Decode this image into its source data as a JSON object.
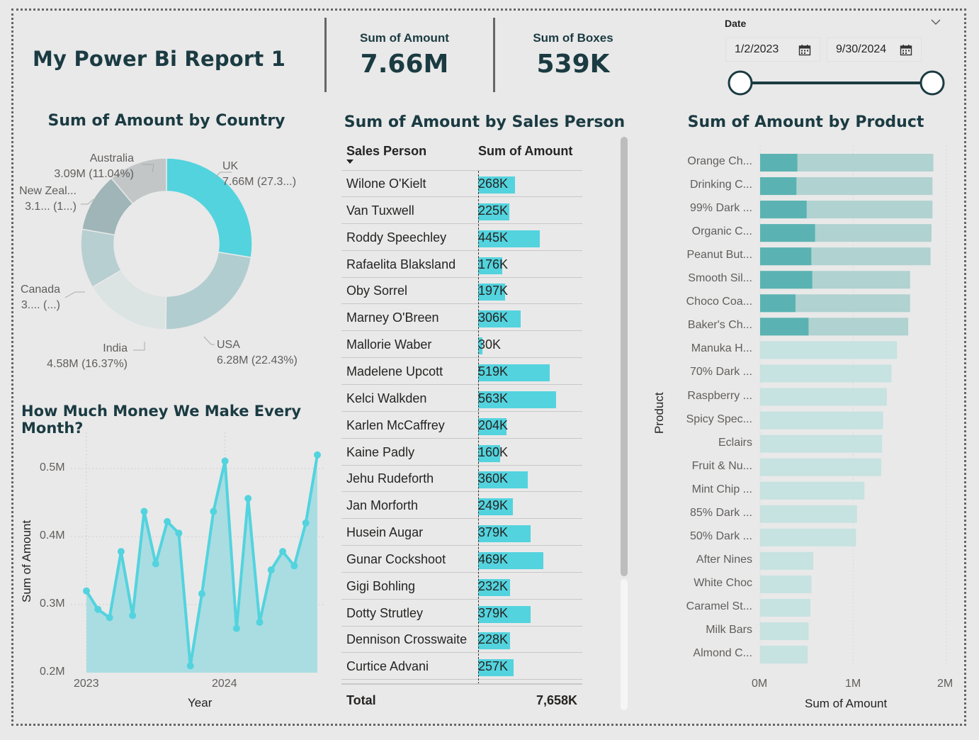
{
  "report_title": "My Power Bi Report 1",
  "cards": [
    {
      "label": "Sum of Amount",
      "value": "7.66M"
    },
    {
      "label": "Sum of Boxes",
      "value": "539K"
    }
  ],
  "date_slicer": {
    "label": "Date",
    "start": "1/2/2023",
    "end": "9/30/2024",
    "range_fraction": [
      0.0,
      1.0
    ]
  },
  "country_chart": {
    "title": "Sum of Amount by Country",
    "labels": {
      "uk": {
        "name": "UK",
        "value": "7.66M (27.3...)"
      },
      "usa": {
        "name": "USA",
        "value": "6.28M (22.43%)"
      },
      "india": {
        "name": "India",
        "value": "4.58M (16.37%)"
      },
      "canada": {
        "name": "Canada",
        "value": "3.... (...)"
      },
      "nz": {
        "name": "New Zeal...",
        "value": "3.1... (1...)"
      },
      "australia": {
        "name": "Australia",
        "value": "3.09M (11.04%)"
      }
    }
  },
  "month_chart": {
    "title": "How Much Money We Make Every Month?",
    "ylabel": "Sum of Amount",
    "xlabel": "Year",
    "yticks": [
      "0.5M",
      "0.4M",
      "0.3M",
      "0.2M"
    ],
    "xticks": [
      "2023",
      "2024"
    ]
  },
  "sales_table": {
    "title": "Sum of Amount by Sales Person",
    "col1": "Sales Person",
    "col2": "Sum of Amount",
    "total_label": "Total",
    "total_value": "7,658K",
    "rows": [
      {
        "name": "Wilone O'Kielt",
        "value": "268K",
        "amount": 268
      },
      {
        "name": "Van Tuxwell",
        "value": "225K",
        "amount": 225
      },
      {
        "name": "Roddy Speechley",
        "value": "445K",
        "amount": 445
      },
      {
        "name": "Rafaelita Blaksland",
        "value": "176K",
        "amount": 176
      },
      {
        "name": "Oby Sorrel",
        "value": "197K",
        "amount": 197
      },
      {
        "name": "Marney O'Breen",
        "value": "306K",
        "amount": 306
      },
      {
        "name": "Mallorie Waber",
        "value": "30K",
        "amount": 30
      },
      {
        "name": "Madelene Upcott",
        "value": "519K",
        "amount": 519
      },
      {
        "name": "Kelci Walkden",
        "value": "563K",
        "amount": 563
      },
      {
        "name": "Karlen McCaffrey",
        "value": "204K",
        "amount": 204
      },
      {
        "name": "Kaine Padly",
        "value": "160K",
        "amount": 160
      },
      {
        "name": "Jehu Rudeforth",
        "value": "360K",
        "amount": 360
      },
      {
        "name": "Jan Morforth",
        "value": "249K",
        "amount": 249
      },
      {
        "name": "Husein Augar",
        "value": "379K",
        "amount": 379
      },
      {
        "name": "Gunar Cockshoot",
        "value": "469K",
        "amount": 469
      },
      {
        "name": "Gigi Bohling",
        "value": "232K",
        "amount": 232
      },
      {
        "name": "Dotty Strutley",
        "value": "379K",
        "amount": 379
      },
      {
        "name": "Dennison Crosswaite",
        "value": "228K",
        "amount": 228
      },
      {
        "name": "Curtice Advani",
        "value": "257K",
        "amount": 257
      }
    ]
  },
  "product_chart": {
    "title": "Sum of Amount by Product",
    "ylabel": "Product",
    "xlabel": "Sum of Amount",
    "xticks": [
      "0M",
      "1M",
      "2M"
    ]
  },
  "chart_data": [
    {
      "type": "pie",
      "title": "Sum of Amount by Country",
      "categories": [
        "UK",
        "USA",
        "India",
        "Canada",
        "New Zeal...",
        "Australia"
      ],
      "values": [
        7.66,
        6.28,
        4.58,
        3.1,
        3.1,
        3.09
      ],
      "colors": [
        "#53d3de",
        "#b2cdd0",
        "#dce3e3",
        "#b8cfd2",
        "#9fb5b7",
        "#c2c6c6"
      ]
    },
    {
      "type": "area",
      "title": "How Much Money We Make Every Month?",
      "xlabel": "Year",
      "ylabel": "Sum of Amount",
      "x": [
        "2023-01",
        "2023-02",
        "2023-03",
        "2023-04",
        "2023-05",
        "2023-06",
        "2023-07",
        "2023-08",
        "2023-09",
        "2023-10",
        "2023-11",
        "2023-12",
        "2024-01",
        "2024-02",
        "2024-03",
        "2024-04",
        "2024-05",
        "2024-06",
        "2024-07",
        "2024-08",
        "2024-09"
      ],
      "values": [
        0.32,
        0.293,
        0.281,
        0.378,
        0.284,
        0.437,
        0.36,
        0.422,
        0.405,
        0.21,
        0.316,
        0.437,
        0.511,
        0.265,
        0.456,
        0.274,
        0.351,
        0.378,
        0.357,
        0.42,
        0.52
      ],
      "ylim": [
        0.2,
        0.53
      ],
      "color": "#53d3de"
    },
    {
      "type": "bar",
      "title": "Sum of Amount by Sales Person",
      "categories": [
        "Wilone O'Kielt",
        "Van Tuxwell",
        "Roddy Speechley",
        "Rafaelita Blaksland",
        "Oby Sorrel",
        "Marney O'Breen",
        "Mallorie Waber",
        "Madelene Upcott",
        "Kelci Walkden",
        "Karlen McCaffrey",
        "Kaine Padly",
        "Jehu Rudeforth",
        "Jan Morforth",
        "Husein Augar",
        "Gunar Cockshoot",
        "Gigi Bohling",
        "Dotty Strutley",
        "Dennison Crosswaite",
        "Curtice Advani"
      ],
      "values": [
        268,
        225,
        445,
        176,
        197,
        306,
        30,
        519,
        563,
        204,
        160,
        360,
        249,
        379,
        469,
        232,
        379,
        228,
        257
      ]
    },
    {
      "type": "bar",
      "title": "Sum of Amount by Product",
      "xlabel": "Sum of Amount",
      "ylabel": "Product",
      "xlim": [
        0,
        2
      ],
      "categories": [
        "Orange Ch...",
        "Drinking C...",
        "99% Dark ...",
        "Organic C...",
        "Peanut But...",
        "Smooth Sil...",
        "Choco Coa...",
        "Baker's Ch...",
        "Manuka H...",
        "70% Dark ...",
        "Raspberry ...",
        "Spicy Spec...",
        "Eclairs",
        "Fruit & Nu...",
        "Mint Chip ...",
        "85% Dark ...",
        "50% Dark ...",
        "After Nines",
        "White Choc",
        "Caramel St...",
        "Milk Bars",
        "Almond C..."
      ],
      "values": [
        1.86,
        1.85,
        1.85,
        1.84,
        1.83,
        1.61,
        1.61,
        1.59,
        1.47,
        1.41,
        1.36,
        1.32,
        1.31,
        1.3,
        1.12,
        1.04,
        1.03,
        0.57,
        0.55,
        0.54,
        0.52,
        0.51
      ],
      "highlight_values": [
        0.4,
        0.39,
        0.5,
        0.59,
        0.55,
        0.56,
        0.38,
        0.52,
        0.0,
        0.0,
        0.0,
        0.0,
        0.0,
        0.0,
        0.0,
        0.0,
        0.0,
        0.0,
        0.0,
        0.0,
        0.0,
        0.0
      ],
      "colors": {
        "highlight": "#5ab3b2",
        "base_selected": "#b0d2d1",
        "base_other": "#c6e2e1"
      }
    }
  ]
}
